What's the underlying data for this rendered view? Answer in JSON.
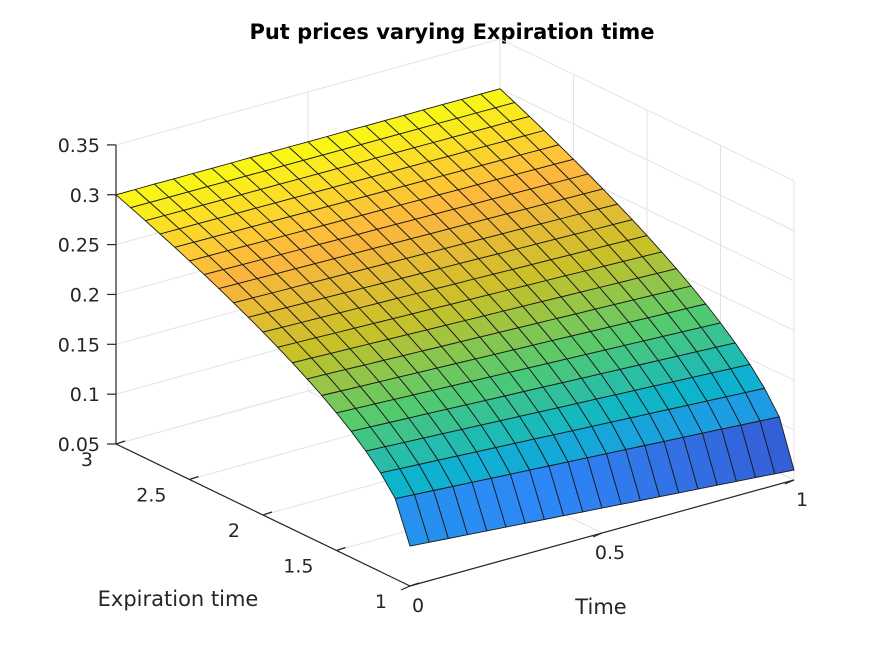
{
  "chart_data": {
    "type": "surface",
    "title": "Put prices varying Expiration time",
    "xlabel": "Time",
    "ylabel": "Expiration time",
    "zlabel": "",
    "xlim": [
      0,
      1
    ],
    "ylim": [
      1,
      3
    ],
    "zlim": [
      0.05,
      0.35
    ],
    "xticks": [
      0,
      0.5,
      1
    ],
    "xtick_labels": [
      "0",
      "0.5",
      "1"
    ],
    "yticks": [
      1,
      1.5,
      2,
      2.5,
      3
    ],
    "ytick_labels": [
      "1",
      "1.5",
      "2",
      "2.5",
      "3"
    ],
    "zticks": [
      0.05,
      0.1,
      0.15,
      0.2,
      0.25,
      0.3,
      0.35
    ],
    "ztick_labels": [
      "0.05",
      "0.1",
      "0.15",
      "0.2",
      "0.25",
      "0.3",
      "0.35"
    ],
    "grid": true,
    "colormap": "parula",
    "colormap_stops": [
      "#3e26a8",
      "#2e87f7",
      "#0cb5cc",
      "#53ca6f",
      "#c8c128",
      "#fdb53f",
      "#f9fa14"
    ],
    "mesh_resolution": {
      "x_steps": 20,
      "y_steps": 20
    },
    "sample_values": {
      "corner_t0_T1": 0.09,
      "corner_t1_T1": 0.06,
      "corner_t0_T3": 0.3,
      "corner_t1_T3": 0.3
    }
  }
}
